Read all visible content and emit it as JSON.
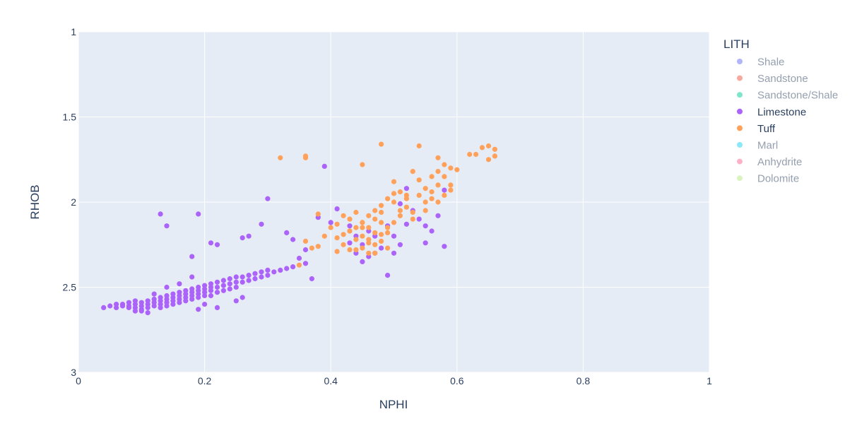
{
  "chart_data": {
    "type": "scatter",
    "xlabel": "NPHI",
    "ylabel": "RHOB",
    "xlim": [
      0,
      1
    ],
    "ylim": [
      1,
      3
    ],
    "y_reversed": true,
    "x_ticks": [
      "0",
      "0.2",
      "0.4",
      "0.6",
      "0.8",
      "1"
    ],
    "x_tick_values": [
      0,
      0.2,
      0.4,
      0.6,
      0.8,
      1
    ],
    "y_ticks": [
      "1",
      "1.5",
      "2",
      "2.5",
      "3"
    ],
    "y_tick_values": [
      1,
      1.5,
      2,
      2.5,
      3
    ],
    "grid": true,
    "legend": {
      "title": "LITH",
      "placement": "right",
      "items": [
        {
          "name": "Shale",
          "color": "#636efa",
          "visible": false
        },
        {
          "name": "Sandstone",
          "color": "#EF553B",
          "visible": false
        },
        {
          "name": "Sandstone/Shale",
          "color": "#00cc96",
          "visible": false
        },
        {
          "name": "Limestone",
          "color": "#ab63fa",
          "visible": true
        },
        {
          "name": "Tuff",
          "color": "#FFA15A",
          "visible": true
        },
        {
          "name": "Marl",
          "color": "#19d3f3",
          "visible": false
        },
        {
          "name": "Anhydrite",
          "color": "#FF6692",
          "visible": false
        },
        {
          "name": "Dolomite",
          "color": "#B6E880",
          "visible": false
        }
      ]
    },
    "series": [
      {
        "name": "Limestone",
        "color": "#ab63fa",
        "points": [
          [
            0.04,
            2.62
          ],
          [
            0.05,
            2.61
          ],
          [
            0.06,
            2.6
          ],
          [
            0.06,
            2.62
          ],
          [
            0.07,
            2.61
          ],
          [
            0.07,
            2.6
          ],
          [
            0.08,
            2.59
          ],
          [
            0.08,
            2.61
          ],
          [
            0.08,
            2.62
          ],
          [
            0.09,
            2.6
          ],
          [
            0.09,
            2.58
          ],
          [
            0.09,
            2.62
          ],
          [
            0.1,
            2.59
          ],
          [
            0.1,
            2.61
          ],
          [
            0.1,
            2.63
          ],
          [
            0.11,
            2.58
          ],
          [
            0.11,
            2.6
          ],
          [
            0.11,
            2.62
          ],
          [
            0.12,
            2.57
          ],
          [
            0.12,
            2.59
          ],
          [
            0.12,
            2.61
          ],
          [
            0.13,
            2.56
          ],
          [
            0.13,
            2.58
          ],
          [
            0.13,
            2.6
          ],
          [
            0.13,
            2.62
          ],
          [
            0.14,
            2.55
          ],
          [
            0.14,
            2.57
          ],
          [
            0.14,
            2.59
          ],
          [
            0.14,
            2.61
          ],
          [
            0.15,
            2.54
          ],
          [
            0.15,
            2.56
          ],
          [
            0.15,
            2.58
          ],
          [
            0.15,
            2.6
          ],
          [
            0.16,
            2.53
          ],
          [
            0.16,
            2.55
          ],
          [
            0.16,
            2.57
          ],
          [
            0.16,
            2.59
          ],
          [
            0.17,
            2.52
          ],
          [
            0.17,
            2.54
          ],
          [
            0.17,
            2.56
          ],
          [
            0.17,
            2.58
          ],
          [
            0.18,
            2.51
          ],
          [
            0.18,
            2.53
          ],
          [
            0.18,
            2.55
          ],
          [
            0.18,
            2.57
          ],
          [
            0.19,
            2.5
          ],
          [
            0.19,
            2.52
          ],
          [
            0.19,
            2.54
          ],
          [
            0.19,
            2.56
          ],
          [
            0.2,
            2.49
          ],
          [
            0.2,
            2.51
          ],
          [
            0.2,
            2.53
          ],
          [
            0.2,
            2.55
          ],
          [
            0.21,
            2.48
          ],
          [
            0.21,
            2.5
          ],
          [
            0.21,
            2.52
          ],
          [
            0.21,
            2.55
          ],
          [
            0.22,
            2.47
          ],
          [
            0.22,
            2.5
          ],
          [
            0.22,
            2.53
          ],
          [
            0.23,
            2.46
          ],
          [
            0.23,
            2.49
          ],
          [
            0.23,
            2.52
          ],
          [
            0.24,
            2.45
          ],
          [
            0.24,
            2.48
          ],
          [
            0.24,
            2.51
          ],
          [
            0.25,
            2.44
          ],
          [
            0.25,
            2.47
          ],
          [
            0.25,
            2.5
          ],
          [
            0.26,
            2.44
          ],
          [
            0.26,
            2.47
          ],
          [
            0.27,
            2.43
          ],
          [
            0.27,
            2.46
          ],
          [
            0.28,
            2.42
          ],
          [
            0.28,
            2.45
          ],
          [
            0.29,
            2.41
          ],
          [
            0.29,
            2.44
          ],
          [
            0.3,
            2.4
          ],
          [
            0.3,
            2.43
          ],
          [
            0.31,
            2.41
          ],
          [
            0.32,
            2.4
          ],
          [
            0.33,
            2.39
          ],
          [
            0.34,
            2.38
          ],
          [
            0.36,
            2.36
          ],
          [
            0.18,
            2.44
          ],
          [
            0.16,
            2.48
          ],
          [
            0.14,
            2.5
          ],
          [
            0.12,
            2.54
          ],
          [
            0.2,
            2.6
          ],
          [
            0.22,
            2.62
          ],
          [
            0.19,
            2.63
          ],
          [
            0.25,
            2.58
          ],
          [
            0.26,
            2.56
          ],
          [
            0.1,
            2.64
          ],
          [
            0.11,
            2.65
          ],
          [
            0.09,
            2.64
          ],
          [
            0.13,
            2.07
          ],
          [
            0.19,
            2.07
          ],
          [
            0.14,
            2.14
          ],
          [
            0.21,
            2.24
          ],
          [
            0.22,
            2.25
          ],
          [
            0.26,
            2.21
          ],
          [
            0.27,
            2.2
          ],
          [
            0.18,
            2.32
          ],
          [
            0.29,
            2.13
          ],
          [
            0.3,
            1.98
          ],
          [
            0.39,
            1.79
          ],
          [
            0.33,
            2.18
          ],
          [
            0.34,
            2.22
          ],
          [
            0.36,
            2.28
          ],
          [
            0.38,
            2.09
          ],
          [
            0.4,
            2.12
          ],
          [
            0.37,
            2.45
          ],
          [
            0.43,
            2.24
          ],
          [
            0.44,
            2.3
          ],
          [
            0.45,
            2.35
          ],
          [
            0.45,
            2.25
          ],
          [
            0.46,
            2.17
          ],
          [
            0.47,
            2.2
          ],
          [
            0.48,
            2.27
          ],
          [
            0.49,
            2.43
          ],
          [
            0.49,
            2.14
          ],
          [
            0.5,
            2.2
          ],
          [
            0.51,
            2.25
          ],
          [
            0.52,
            2.13
          ],
          [
            0.53,
            2.05
          ],
          [
            0.54,
            2.1
          ],
          [
            0.55,
            2.14
          ],
          [
            0.56,
            2.17
          ],
          [
            0.58,
            2.26
          ],
          [
            0.58,
            1.93
          ],
          [
            0.52,
            1.92
          ],
          [
            0.51,
            2.01
          ],
          [
            0.55,
            2.24
          ],
          [
            0.57,
            2.08
          ],
          [
            0.5,
            2.3
          ],
          [
            0.41,
            2.04
          ],
          [
            0.35,
            2.33
          ],
          [
            0.43,
            2.14
          ],
          [
            0.46,
            2.32
          ],
          [
            0.47,
            2.3
          ],
          [
            0.44,
            2.2
          ]
        ]
      },
      {
        "name": "Tuff",
        "color": "#FFA15A",
        "points": [
          [
            0.32,
            1.74
          ],
          [
            0.36,
            1.74
          ],
          [
            0.36,
            1.73
          ],
          [
            0.38,
            2.07
          ],
          [
            0.35,
            2.37
          ],
          [
            0.36,
            2.23
          ],
          [
            0.37,
            2.27
          ],
          [
            0.38,
            2.26
          ],
          [
            0.39,
            2.2
          ],
          [
            0.4,
            2.15
          ],
          [
            0.41,
            2.13
          ],
          [
            0.41,
            2.21
          ],
          [
            0.42,
            2.25
          ],
          [
            0.42,
            2.19
          ],
          [
            0.43,
            2.1
          ],
          [
            0.43,
            2.17
          ],
          [
            0.44,
            2.22
          ],
          [
            0.44,
            2.28
          ],
          [
            0.45,
            2.12
          ],
          [
            0.45,
            2.15
          ],
          [
            0.45,
            2.2
          ],
          [
            0.46,
            2.22
          ],
          [
            0.46,
            2.08
          ],
          [
            0.46,
            2.3
          ],
          [
            0.47,
            2.1
          ],
          [
            0.47,
            2.18
          ],
          [
            0.47,
            2.25
          ],
          [
            0.47,
            2.05
          ],
          [
            0.48,
            2.02
          ],
          [
            0.48,
            2.12
          ],
          [
            0.48,
            2.23
          ],
          [
            0.48,
            2.06
          ],
          [
            0.49,
            1.98
          ],
          [
            0.49,
            2.15
          ],
          [
            0.49,
            2.27
          ],
          [
            0.5,
            2.0
          ],
          [
            0.5,
            1.95
          ],
          [
            0.5,
            1.88
          ],
          [
            0.51,
            1.94
          ],
          [
            0.51,
            2.08
          ],
          [
            0.52,
            1.98
          ],
          [
            0.52,
            2.03
          ],
          [
            0.53,
            1.82
          ],
          [
            0.53,
            2.06
          ],
          [
            0.54,
            1.87
          ],
          [
            0.54,
            1.96
          ],
          [
            0.55,
            1.92
          ],
          [
            0.55,
            2.0
          ],
          [
            0.56,
            1.94
          ],
          [
            0.56,
            1.98
          ],
          [
            0.57,
            1.82
          ],
          [
            0.57,
            1.9
          ],
          [
            0.57,
            1.74
          ],
          [
            0.58,
            1.85
          ],
          [
            0.58,
            1.96
          ],
          [
            0.59,
            1.8
          ],
          [
            0.59,
            1.9
          ],
          [
            0.6,
            1.81
          ],
          [
            0.62,
            1.72
          ],
          [
            0.63,
            1.72
          ],
          [
            0.64,
            1.68
          ],
          [
            0.65,
            1.67
          ],
          [
            0.66,
            1.69
          ],
          [
            0.66,
            1.73
          ],
          [
            0.65,
            1.75
          ],
          [
            0.54,
            1.67
          ],
          [
            0.48,
            1.66
          ],
          [
            0.45,
            1.78
          ],
          [
            0.43,
            2.17
          ],
          [
            0.45,
            2.27
          ],
          [
            0.47,
            2.3
          ],
          [
            0.49,
            2.18
          ],
          [
            0.46,
            2.24
          ],
          [
            0.44,
            2.06
          ],
          [
            0.42,
            2.08
          ],
          [
            0.51,
            2.05
          ],
          [
            0.5,
            2.12
          ],
          [
            0.48,
            2.19
          ],
          [
            0.46,
            2.15
          ],
          [
            0.45,
            2.12
          ],
          [
            0.44,
            2.15
          ],
          [
            0.43,
            2.28
          ],
          [
            0.41,
            2.29
          ],
          [
            0.52,
            1.96
          ],
          [
            0.53,
            2.1
          ],
          [
            0.55,
            2.05
          ],
          [
            0.56,
            1.85
          ],
          [
            0.58,
            1.78
          ],
          [
            0.59,
            1.93
          ],
          [
            0.57,
            2.0
          ]
        ]
      }
    ]
  }
}
